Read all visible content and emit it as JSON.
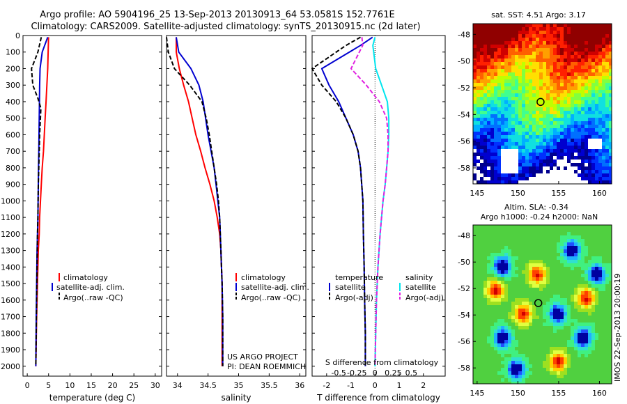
{
  "header": {
    "line1": "Argo profile: AO 5904196_25 13-Sep-2013 20130913_64 53.0581S 152.7761E",
    "line2": "Climatology: CARS2009. Satellite-adjusted climatology: synTS_20130915.nc (2d later)"
  },
  "colors": {
    "climatology": "#ff0000",
    "satellite": "#0000d0",
    "argo": "#000000",
    "salinity_satellite": "#00e5ee",
    "salinity_argo": "#e020e0"
  },
  "credit": {
    "line1": "US ARGO PROJECT",
    "line2": "PI: DEAN ROEMMICH"
  },
  "stamp": "IMOS 22-Sep-2013 20:00:19",
  "chart_data": [
    {
      "type": "line",
      "xlabel": "temperature (deg C)",
      "ylabel": "",
      "xlim": [
        -1,
        31.5
      ],
      "ylim": [
        2060,
        0
      ],
      "xticks": [
        "0",
        "5",
        "10",
        "15",
        "20",
        "25",
        "30"
      ],
      "xtick_values": [
        0,
        5,
        10,
        15,
        20,
        25,
        30
      ],
      "yticks": [
        "0",
        "100",
        "200",
        "300",
        "400",
        "500",
        "600",
        "700",
        "800",
        "900",
        "1000",
        "1100",
        "1200",
        "1300",
        "1400",
        "1500",
        "1600",
        "1700",
        "1800",
        "1900",
        "2000"
      ],
      "legend": [
        "climatology",
        "satellite-adj. clim.",
        "Argo(..raw -QC)"
      ],
      "series": [
        {
          "name": "climatology",
          "color": "#ff0000",
          "style": "solid",
          "x": [
            5.0,
            4.9,
            4.8,
            4.6,
            4.4,
            4.2,
            4.0,
            3.8,
            3.5,
            3.3,
            3.1,
            2.9,
            2.8,
            2.6,
            2.5,
            2.4,
            2.3,
            2.2,
            2.1,
            2.0
          ],
          "y": [
            10,
            100,
            200,
            300,
            400,
            500,
            600,
            700,
            800,
            900,
            1000,
            1100,
            1200,
            1300,
            1400,
            1500,
            1600,
            1700,
            1850,
            2000
          ]
        },
        {
          "name": "satellite-adj. clim.",
          "color": "#0000d0",
          "style": "solid",
          "x": [
            4.8,
            3.5,
            3.0,
            2.9,
            2.85,
            2.8,
            2.75,
            2.7,
            2.65,
            2.6,
            2.55,
            2.5,
            2.4,
            2.3,
            2.25,
            2.2,
            2.15,
            2.1,
            2.05,
            2.0
          ],
          "y": [
            10,
            100,
            200,
            300,
            400,
            500,
            600,
            700,
            800,
            900,
            1000,
            1100,
            1200,
            1300,
            1400,
            1500,
            1600,
            1700,
            1850,
            2000
          ]
        },
        {
          "name": "Argo(..raw -QC)",
          "color": "#000000",
          "style": "dashed",
          "x": [
            3.3,
            2.5,
            1.0,
            1.3,
            2.5,
            3.2,
            2.9,
            2.8,
            2.7,
            2.6,
            2.55,
            2.5,
            2.4,
            2.3,
            2.2,
            2.1,
            2.0
          ],
          "y": [
            10,
            100,
            200,
            300,
            380,
            440,
            600,
            700,
            800,
            900,
            1000,
            1100,
            1200,
            1400,
            1600,
            1800,
            2000
          ]
        }
      ]
    },
    {
      "type": "line",
      "xlabel": "salinity",
      "ylabel": "",
      "xlim": [
        33.82,
        36.1
      ],
      "ylim": [
        2060,
        0
      ],
      "xticks": [
        "34",
        "34.5",
        "35",
        "35.5",
        "36"
      ],
      "xtick_values": [
        34,
        34.5,
        35,
        35.5,
        36
      ],
      "legend": [
        "climatology",
        "satellite-adj. clim.",
        "Argo(..raw -QC)"
      ],
      "series": [
        {
          "name": "climatology",
          "color": "#ff0000",
          "style": "solid",
          "x": [
            33.98,
            33.98,
            34.03,
            34.1,
            34.18,
            34.24,
            34.3,
            34.38,
            34.45,
            34.53,
            34.6,
            34.65,
            34.69,
            34.71,
            34.72,
            34.73,
            34.73,
            34.73
          ],
          "y": [
            10,
            100,
            200,
            300,
            400,
            500,
            600,
            700,
            800,
            900,
            1000,
            1100,
            1200,
            1300,
            1400,
            1500,
            1700,
            2000
          ]
        },
        {
          "name": "satellite-adj. clim.",
          "color": "#0000d0",
          "style": "solid",
          "x": [
            33.98,
            34.02,
            34.22,
            34.35,
            34.42,
            34.46,
            34.5,
            34.55,
            34.6,
            34.63,
            34.66,
            34.69,
            34.7,
            34.71,
            34.72,
            34.73,
            34.74,
            34.74
          ],
          "y": [
            10,
            100,
            200,
            300,
            400,
            500,
            600,
            700,
            800,
            900,
            1000,
            1100,
            1200,
            1300,
            1400,
            1500,
            1700,
            2000
          ]
        },
        {
          "name": "Argo(..raw -QC)",
          "color": "#000000",
          "style": "dashed",
          "x": [
            33.82,
            33.85,
            33.95,
            34.2,
            34.4,
            34.47,
            34.52,
            34.56,
            34.6,
            34.64,
            34.67,
            34.69,
            34.7,
            34.71,
            34.72,
            34.73,
            34.74,
            34.74
          ],
          "y": [
            10,
            100,
            200,
            300,
            400,
            500,
            600,
            700,
            800,
            900,
            1000,
            1100,
            1200,
            1300,
            1400,
            1500,
            1700,
            2000
          ]
        }
      ]
    },
    {
      "type": "line",
      "xlabel": "T difference from climatology",
      "xlabel_top": "S difference from climatology",
      "ylabel": "",
      "xlim": [
        -2.6,
        2.9
      ],
      "ylim": [
        2060,
        0
      ],
      "xticks": [
        "-2",
        "-1",
        "0",
        "1",
        "2"
      ],
      "xtick_values": [
        -2,
        -1,
        0,
        1,
        2
      ],
      "sticks": [
        "-0.5",
        "-0.25",
        "0",
        "0.25",
        "0.5"
      ],
      "stick_values": [
        -0.5,
        -0.25,
        0,
        0.25,
        0.5
      ],
      "legend_left_title": "temperature",
      "legend_right_title": "salinity",
      "legend": [
        "satellite",
        "Argo(-adj)",
        "satellite",
        "Argo(-adj)"
      ],
      "series": [
        {
          "name": "temperature satellite",
          "color": "#0000d0",
          "style": "solid",
          "axis": "T",
          "x": [
            -0.1,
            -0.6,
            -2.2,
            -1.9,
            -1.5,
            -1.2,
            -0.9,
            -0.7,
            -0.6,
            -0.55,
            -0.5,
            -0.48,
            -0.45,
            -0.43,
            -0.4,
            -0.4
          ],
          "y": [
            10,
            60,
            200,
            300,
            400,
            500,
            600,
            700,
            800,
            900,
            1000,
            1200,
            1400,
            1600,
            1800,
            2000
          ]
        },
        {
          "name": "temperature Argo(-adj)",
          "color": "#000000",
          "style": "dashed",
          "axis": "T",
          "x": [
            -0.6,
            -1.2,
            -2.6,
            -2.2,
            -1.6,
            -1.2,
            -0.9,
            -0.7,
            -0.6,
            -0.55,
            -0.5,
            -0.48,
            -0.45,
            -0.43,
            -0.4,
            -0.4
          ],
          "y": [
            10,
            60,
            200,
            300,
            400,
            500,
            600,
            700,
            800,
            900,
            1000,
            1200,
            1400,
            1600,
            1800,
            2000
          ]
        },
        {
          "name": "salinity satellite",
          "color": "#00e5ee",
          "style": "solid",
          "axis": "S",
          "x": [
            0.0,
            -0.03,
            0.01,
            0.09,
            0.17,
            0.19,
            0.19,
            0.18,
            0.16,
            0.14,
            0.11,
            0.07,
            0.04,
            0.02,
            0.01,
            0.0
          ],
          "y": [
            10,
            60,
            200,
            300,
            400,
            500,
            600,
            700,
            800,
            900,
            1000,
            1200,
            1400,
            1600,
            1800,
            2000
          ]
        },
        {
          "name": "salinity Argo(-adj)",
          "color": "#e020e0",
          "style": "dashed",
          "axis": "S",
          "x": [
            -0.18,
            -0.17,
            -0.33,
            -0.12,
            0.06,
            0.16,
            0.18,
            0.18,
            0.16,
            0.14,
            0.11,
            0.07,
            0.04,
            0.02,
            0.01,
            0.0
          ],
          "y": [
            10,
            60,
            200,
            300,
            400,
            500,
            600,
            700,
            800,
            900,
            1000,
            1200,
            1400,
            1600,
            1800,
            2000
          ]
        }
      ]
    },
    {
      "type": "heatmap",
      "title": "sat. SST: 4.51  Argo: 3.17",
      "xlim": [
        144.5,
        161.5
      ],
      "ylim": [
        -59.2,
        -47.2
      ],
      "xticks": [
        "145",
        "150",
        "155",
        "160"
      ],
      "xtick_values": [
        145,
        150,
        155,
        160
      ],
      "yticks": [
        "-48",
        "-50",
        "-52",
        "-54",
        "-56",
        "-58"
      ],
      "ytick_values": [
        -48,
        -50,
        -52,
        -54,
        -56,
        -58
      ],
      "marker": {
        "lon": 152.78,
        "lat": -53.06
      }
    },
    {
      "type": "heatmap",
      "title": "Altim. SLA: -0.34",
      "subtitle": "Argo h1000: -0.24 h2000: NaN",
      "xlim": [
        144.5,
        161.5
      ],
      "ylim": [
        -59.2,
        -47.2
      ],
      "xticks": [
        "145",
        "150",
        "155",
        "160"
      ],
      "xtick_values": [
        145,
        150,
        155,
        160
      ],
      "yticks": [
        "-48",
        "-50",
        "-52",
        "-54",
        "-56",
        "-58"
      ],
      "ytick_values": [
        -48,
        -50,
        -52,
        -54,
        -56,
        -58
      ],
      "marker": {
        "lon": 152.5,
        "lat": -53.1
      }
    }
  ]
}
